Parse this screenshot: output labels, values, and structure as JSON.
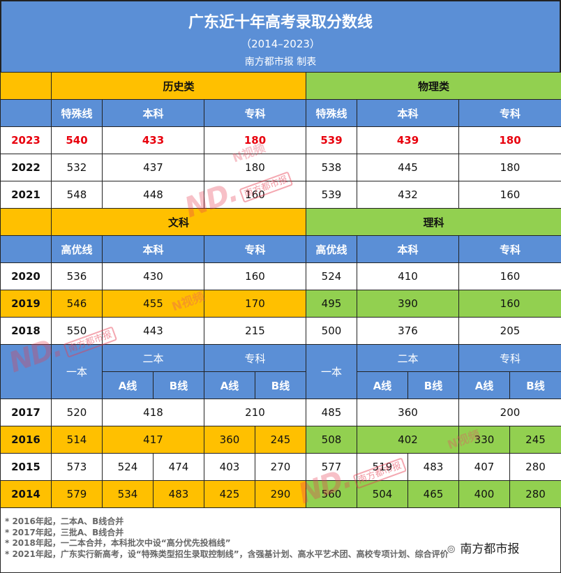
{
  "header": {
    "title": "广东近十年高考录取分数线",
    "subtitle": "（2014–2023）",
    "credit": "南方都市报 制表"
  },
  "section1": {
    "left_title": "历史类",
    "right_title": "物理类",
    "cols": [
      "特殊线",
      "本科",
      "专科",
      "特殊线",
      "本科",
      "专科"
    ],
    "rows": [
      {
        "year": "2023",
        "v": [
          "540",
          "433",
          "180",
          "539",
          "439",
          "180"
        ]
      },
      {
        "year": "2022",
        "v": [
          "532",
          "437",
          "180",
          "538",
          "445",
          "180"
        ]
      },
      {
        "year": "2021",
        "v": [
          "548",
          "448",
          "160",
          "539",
          "432",
          "160"
        ]
      }
    ]
  },
  "section2": {
    "left_title": "文科",
    "right_title": "理科",
    "cols": [
      "高优线",
      "本科",
      "专科",
      "高优线",
      "本科",
      "专科"
    ],
    "rows": [
      {
        "year": "2020",
        "v": [
          "536",
          "430",
          "160",
          "524",
          "410",
          "160"
        ]
      },
      {
        "year": "2019",
        "v": [
          "546",
          "455",
          "170",
          "495",
          "390",
          "160"
        ]
      },
      {
        "year": "2018",
        "v": [
          "550",
          "443",
          "215",
          "500",
          "376",
          "205"
        ]
      }
    ]
  },
  "section3": {
    "yiben": "一本",
    "erben": "二本",
    "zhuanke": "专科",
    "a_line": "A线",
    "b_line": "B线",
    "row2017": {
      "year": "2017",
      "v": [
        "520",
        "418",
        "210",
        "485",
        "360",
        "200"
      ]
    },
    "row2016": {
      "year": "2016",
      "v": [
        "514",
        "417",
        "360",
        "245",
        "508",
        "402",
        "330",
        "245"
      ]
    },
    "row2015": {
      "year": "2015",
      "v": [
        "573",
        "524",
        "474",
        "403",
        "270",
        "577",
        "519",
        "483",
        "407",
        "280"
      ]
    },
    "row2014": {
      "year": "2014",
      "v": [
        "579",
        "534",
        "483",
        "425",
        "290",
        "560",
        "504",
        "465",
        "400",
        "280"
      ]
    }
  },
  "notes": [
    "* 2016年起，二本A、B线合并",
    "* 2017年起，三批A、B线合并",
    "* 2018年起，一二本合并，本科批次中设“高分优先投档线”",
    "* 2021年起，广东实行新高考，设“特殊类型招生录取控制线”，含强基计划、高水平艺术团、高校专项计划、综合评价"
  ],
  "watermarks": {
    "nd": "ND.",
    "tag": "南方都市报",
    "nvideo": "N视频",
    "wechat": "南方都市报",
    "wechat_icon": "wechat-icon"
  },
  "colors": {
    "header_blue": "#5b8fd6",
    "history_yellow": "#ffc000",
    "physics_green": "#92d050",
    "highlight_red": "#e8000d"
  }
}
